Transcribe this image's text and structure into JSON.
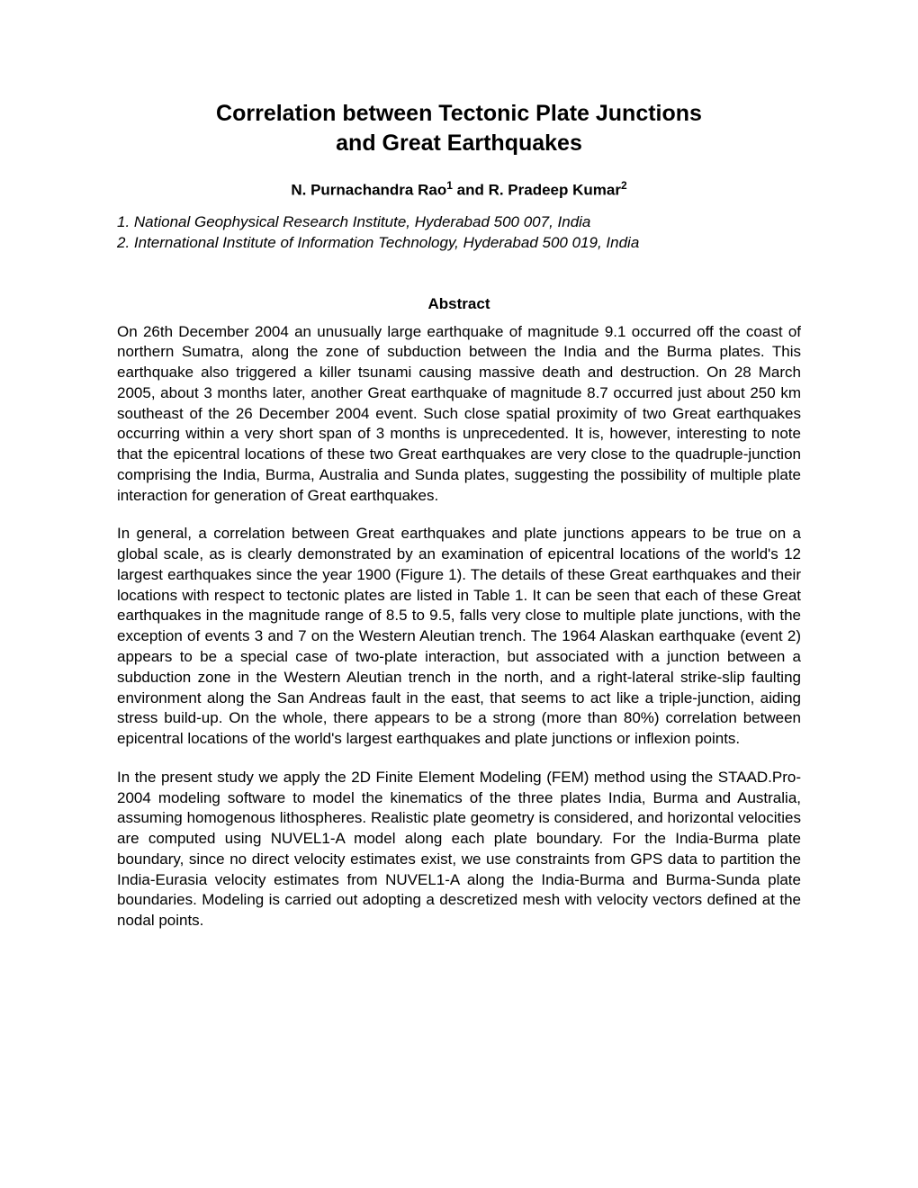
{
  "title_line1": "Correlation between Tectonic Plate Junctions",
  "title_line2": "and Great Earthquakes",
  "authors": {
    "author1_name": "N. Purnachandra Rao",
    "author1_sup": "1",
    "connector": " and ",
    "author2_name": "R. Pradeep Kumar",
    "author2_sup": "2"
  },
  "affiliations": {
    "aff1": "1. National Geophysical Research Institute, Hyderabad 500 007, India",
    "aff2": "2. International Institute of Information Technology, Hyderabad 500 019, India"
  },
  "abstract_heading": "Abstract",
  "paragraphs": {
    "p1": "On 26th December 2004 an unusually large earthquake of magnitude 9.1 occurred off the coast of northern Sumatra, along the zone of subduction between the India and the Burma plates. This earthquake also triggered a killer tsunami causing massive death and destruction. On 28 March 2005, about 3 months later, another Great earthquake of magnitude 8.7 occurred just about 250 km southeast of the 26 December 2004 event. Such close spatial proximity of two Great earthquakes occurring within a very short span of 3 months is unprecedented. It is, however, interesting to note that the epicentral locations of these two Great earthquakes are very close to the quadruple-junction comprising the India, Burma, Australia and Sunda plates, suggesting the possibility of multiple plate interaction for generation of Great earthquakes.",
    "p2": "In general, a correlation between Great earthquakes and plate junctions appears to be true on a global scale, as is clearly demonstrated by an examination of epicentral locations of the world's 12 largest earthquakes since the year 1900 (Figure 1). The details of these Great earthquakes and their locations with respect to tectonic plates are listed in Table 1. It can be seen that each of these Great earthquakes in the magnitude range of 8.5 to 9.5, falls very close to multiple plate junctions, with the exception of events 3 and 7 on the Western Aleutian trench. The 1964 Alaskan earthquake (event 2) appears to be a special case of two-plate interaction, but associated with a junction between a subduction zone in the Western Aleutian trench in the north, and a right-lateral strike-slip faulting environment along the San Andreas fault in the east, that seems to act like a triple-junction, aiding stress build-up. On the whole, there appears to be a strong (more than 80%) correlation between epicentral locations of the world's largest earthquakes and plate junctions or inflexion points.",
    "p3": "In the present study we apply the 2D Finite Element Modeling (FEM) method using the STAAD.Pro-2004 modeling software to model the kinematics of the three plates India, Burma and Australia, assuming homogenous lithospheres. Realistic plate geometry is considered, and horizontal velocities are computed using NUVEL1-A model along each plate boundary. For the India-Burma plate boundary, since no direct velocity estimates exist, we use constraints from GPS data to partition the India-Eurasia velocity estimates from NUVEL1-A along the India-Burma and Burma-Sunda plate boundaries. Modeling is carried out adopting a descretized mesh with velocity vectors defined at the nodal points."
  }
}
